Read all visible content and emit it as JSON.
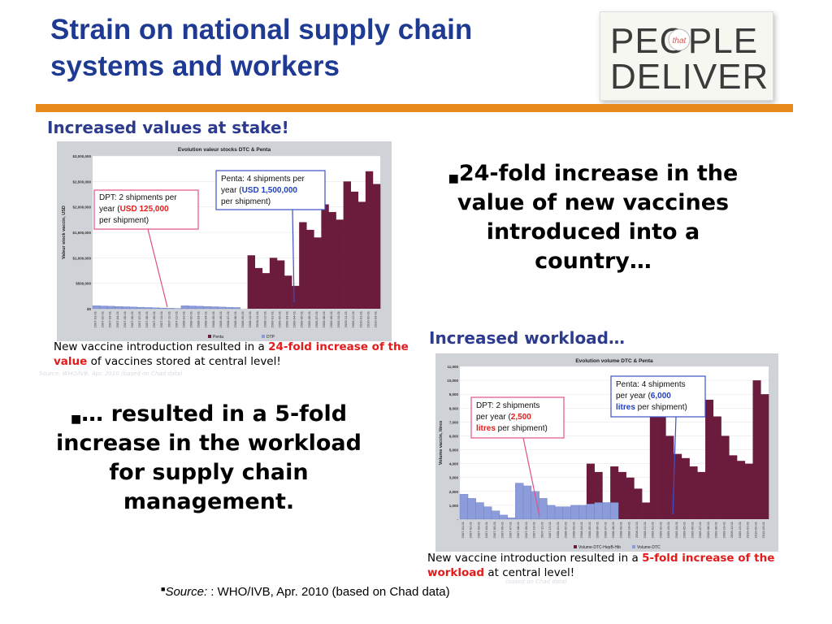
{
  "slide": {
    "title_line1": "Strain on national supply chain",
    "title_line2": "systems and workers",
    "logo": {
      "top": "PEOPLE",
      "small": "that",
      "bottom": "DELIVER"
    },
    "chart1_heading": "Increased values at stake!",
    "chart2_heading": "Increased workload…",
    "bullet_right": "24-fold increase in the value of new vaccines introduced into a country…",
    "bullet_left": "… resulted in a 5-fold increase in the workload for supply chain management.",
    "caption1_pre": "New vaccine introduction resulted in a ",
    "caption1_hl": "24-fold increase of the value",
    "caption1_post": " of vaccines stored at central level!",
    "caption2_pre": "New vaccine introduction resulted in a ",
    "caption2_hl": "5-fold increase of the workload",
    "caption2_post": " at central level!",
    "faint_source1": "Source: WHO/IVB, Apr. 2010 (based on Chad data)",
    "faint_source2": "(based on Chad data)",
    "source_label": "Source:",
    "source_text": " : WHO/IVB, Apr. 2010 (based on Chad data)",
    "bullet_glyph": "■",
    "colors": {
      "title": "#1f3a93",
      "rule": "#e8891b",
      "heading": "#2d3b8f",
      "highlight": "#e31b1b",
      "penta": "#6b1b3c",
      "dtp": "#8c9bd9"
    }
  },
  "chart_data": [
    {
      "type": "area",
      "title": "Evolution valeur stocks DTC & Penta",
      "ylabel": "Valeur stock vaccin, USD",
      "yticks": [
        "$3,000,000",
        "$2,500,000",
        "$2,000,000",
        "$1,500,000",
        "$1,000,000",
        "$500,000",
        "$0"
      ],
      "ylim": [
        0,
        3000000
      ],
      "xtick_labels": [
        "2007-01-01",
        "2007-02-01",
        "2007-03-01",
        "2007-04-01",
        "2007-05-01",
        "2007-06-01",
        "2007-07-01",
        "2007-08-01",
        "2007-09-01",
        "2007-10-01",
        "2007-11-01",
        "2007-12-01",
        "2008-01-01",
        "2008-02-01",
        "2008-03-01",
        "2008-04-01",
        "2008-05-01",
        "2008-06-01",
        "2008-07-01",
        "2008-08-01",
        "2008-09-01",
        "2008-10-01",
        "2008-11-01",
        "2008-12-01",
        "2009-01-01",
        "2009-02-01",
        "2009-03-01",
        "2009-04-01",
        "2009-05-01",
        "2009-06-01",
        "2009-07-01",
        "2009-08-01",
        "2009-09-01",
        "2009-10-01",
        "2009-11-01",
        "2009-12-01",
        "2010-01-01",
        "2010-02-01",
        "2010-03-01"
      ],
      "series": [
        {
          "name": "Penta",
          "values": [
            0,
            0,
            0,
            0,
            0,
            0,
            0,
            0,
            0,
            0,
            0,
            0,
            0,
            0,
            0,
            0,
            0,
            0,
            0,
            0,
            0,
            1050000,
            800000,
            700000,
            1000000,
            950000,
            650000,
            450000,
            1700000,
            1550000,
            1400000,
            2050000,
            1900000,
            1750000,
            2500000,
            2300000,
            2100000,
            2700000,
            2450000
          ]
        },
        {
          "name": "DTP",
          "values": [
            60000,
            55000,
            50000,
            45000,
            40000,
            35000,
            30000,
            25000,
            20000,
            15000,
            10000,
            5000,
            60000,
            55000,
            50000,
            45000,
            40000,
            35000,
            30000,
            25000,
            0,
            0,
            0,
            0,
            0,
            0,
            0,
            0,
            0,
            0,
            0,
            0,
            0,
            0,
            0,
            0,
            0,
            0,
            0
          ]
        }
      ],
      "annotations": [
        {
          "lines": [
            "DPT: 2 shipments per",
            "year (",
            "USD 125,000",
            "per shipment)"
          ]
        },
        {
          "lines": [
            "Penta: 4 shipments per",
            "year (",
            "USD 1,500,000",
            "per shipment)"
          ]
        }
      ]
    },
    {
      "type": "area",
      "title": "Evolution volume DTC & Penta",
      "ylabel": "Volume vaccin, litres",
      "yticks": [
        "11,000",
        "10,000",
        "9,000",
        "8,000",
        "7,000",
        "6,000",
        "5,000",
        "4,000",
        "3,000",
        "2,000",
        "1,000",
        "-"
      ],
      "ylim": [
        0,
        11000
      ],
      "xtick_labels": [
        "2007-01-01",
        "2007-02-01",
        "2007-03-01",
        "2007-04-01",
        "2007-05-01",
        "2007-06-01",
        "2007-07-01",
        "2007-08-01",
        "2007-09-01",
        "2007-10-01",
        "2007-11-01",
        "2007-12-01",
        "2008-01-01",
        "2008-02-01",
        "2008-03-01",
        "2008-04-01",
        "2008-05-01",
        "2008-06-01",
        "2008-07-01",
        "2008-08-01",
        "2008-09-01",
        "2008-10-01",
        "2008-11-01",
        "2008-12-01",
        "2009-01-01",
        "2009-02-01",
        "2009-03-01",
        "2009-04-01",
        "2009-05-01",
        "2009-06-01",
        "2009-07-01",
        "2009-08-01",
        "2009-09-01",
        "2009-10-01",
        "2009-11-01",
        "2009-12-01",
        "2010-01-01",
        "2010-02-01",
        "2010-03-01"
      ],
      "series": [
        {
          "name": "Volume-DTC-HepB-Hib",
          "values": [
            0,
            0,
            0,
            0,
            0,
            0,
            0,
            0,
            0,
            0,
            0,
            0,
            0,
            0,
            0,
            0,
            4000,
            3400,
            1000,
            3800,
            3400,
            3000,
            2200,
            1200,
            9000,
            7500,
            6000,
            4700,
            4400,
            3800,
            3400,
            8600,
            7400,
            6000,
            4600,
            4200,
            4000,
            10000,
            9000
          ]
        },
        {
          "name": "Volume-DTC",
          "values": [
            1800,
            1500,
            1200,
            900,
            600,
            300,
            100,
            2600,
            2400,
            2000,
            1500,
            1000,
            900,
            900,
            1000,
            1000,
            1100,
            1200,
            1200,
            1200,
            0,
            0,
            0,
            0,
            0,
            0,
            0,
            0,
            0,
            0,
            0,
            0,
            0,
            0,
            0,
            0,
            0,
            0,
            0
          ]
        }
      ],
      "annotations": [
        {
          "lines": [
            "DPT: 2 shipments",
            "per year (",
            "2,500",
            "litres",
            " per shipment)"
          ]
        },
        {
          "lines": [
            "Penta: 4 shipments",
            "per year (",
            "6,000",
            "litres",
            " per shipment)"
          ]
        }
      ]
    }
  ]
}
